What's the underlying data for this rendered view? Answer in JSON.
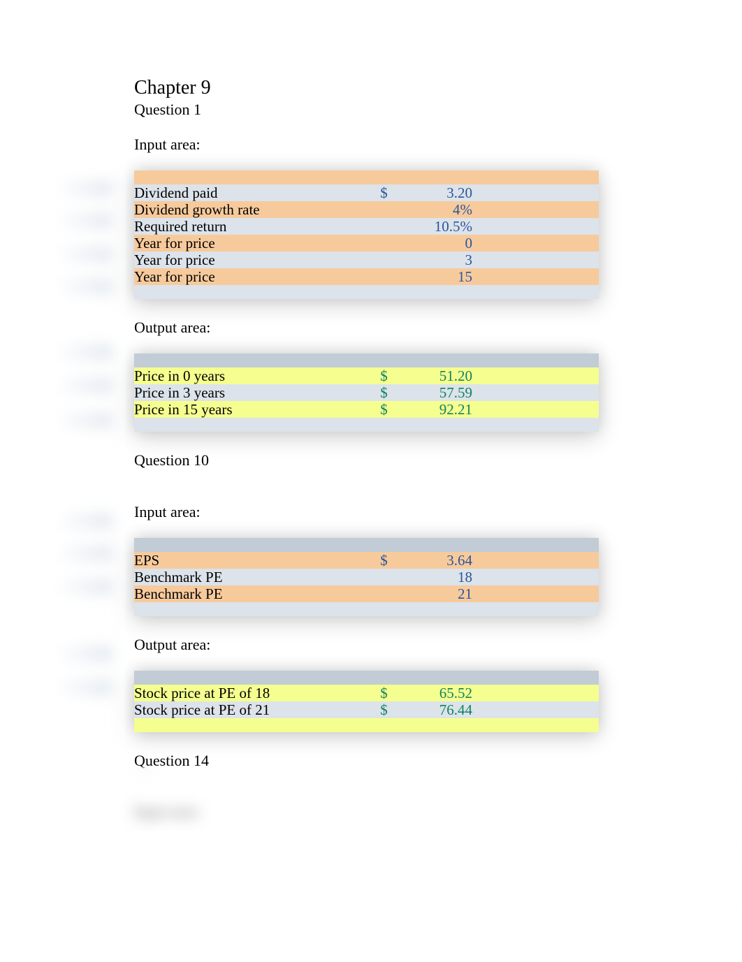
{
  "header": {
    "chapter": "Chapter 9",
    "q1": "Question 1",
    "q10": "Question 10",
    "q14": "Question 14"
  },
  "labels": {
    "input_area": "Input area:",
    "output_area": "Output area:"
  },
  "q1": {
    "input": {
      "rows": [
        {
          "label": "Dividend paid",
          "currency": "$",
          "value": "3.20",
          "bg": "gray"
        },
        {
          "label": "Dividend growth rate",
          "currency": "",
          "value": "4%",
          "bg": "orange"
        },
        {
          "label": "Required return",
          "currency": "",
          "value": "10.5%",
          "bg": "gray"
        },
        {
          "label": "Year for price",
          "currency": "",
          "value": "0",
          "bg": "orange"
        },
        {
          "label": "Year for price",
          "currency": "",
          "value": "3",
          "bg": "gray"
        },
        {
          "label": "Year for price",
          "currency": "",
          "value": "15",
          "bg": "orange"
        }
      ],
      "top_bg": "orange",
      "bottom_bg": "gray"
    },
    "output": {
      "rows": [
        {
          "label": "Price in 0 years",
          "currency": "$",
          "value": "51.20",
          "bg": "yellow"
        },
        {
          "label": "Price in 3 years",
          "currency": "$",
          "value": "57.59",
          "bg": "gray"
        },
        {
          "label": "Price in 15 years",
          "currency": "$",
          "value": "92.21",
          "bg": "yellow"
        }
      ],
      "top_bg": "gray",
      "bottom_bg": "gray"
    }
  },
  "q10": {
    "input": {
      "rows": [
        {
          "label": "EPS",
          "currency": "$",
          "value": "3.64",
          "bg": "orange"
        },
        {
          "label": "Benchmark PE",
          "currency": "",
          "value": "18",
          "bg": "gray"
        },
        {
          "label": "Benchmark PE",
          "currency": "",
          "value": "21",
          "bg": "orange"
        }
      ],
      "top_bg": "gray",
      "bottom_bg": "gray"
    },
    "output": {
      "rows": [
        {
          "label": "Stock price at PE of 18",
          "currency": "$",
          "value": "65.52",
          "bg": "yellow"
        },
        {
          "label": "Stock price at PE of 21",
          "currency": "$",
          "value": "76.44",
          "bg": "gray"
        }
      ],
      "top_bg": "gray",
      "bottom_bg": "yellow"
    }
  },
  "colors": {
    "orange": "#f7ca9c",
    "gray": "#dce3ea",
    "yellow": "#f5ff8f",
    "graytop": "#c2ccd6",
    "input_text": "#2b5699",
    "output_text": "#11825e",
    "black": "#000000",
    "background": "#ffffff"
  },
  "stubs": {
    "positions": [
      258,
      304,
      352,
      398,
      492,
      540,
      590,
      734,
      780,
      828,
      924,
      972
    ]
  }
}
